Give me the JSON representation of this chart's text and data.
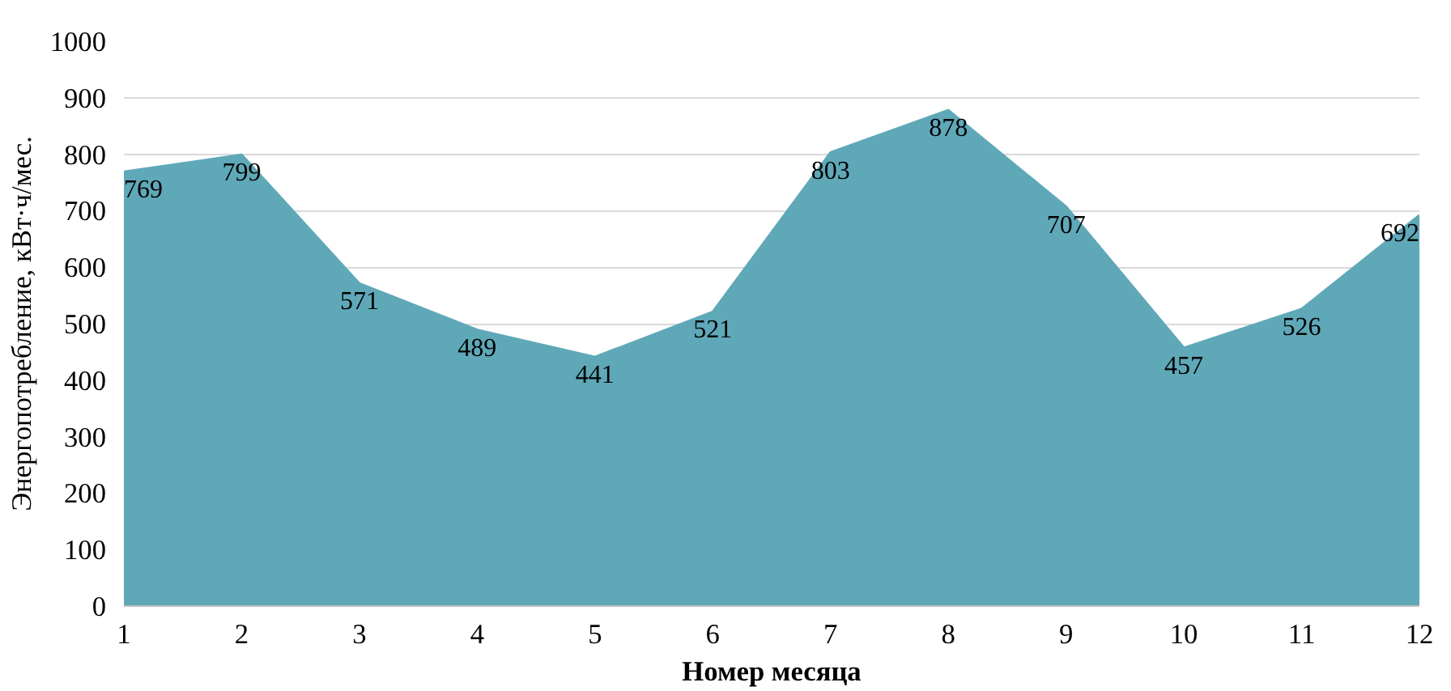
{
  "chart_data": {
    "type": "area",
    "xlabel": "Номер месяца",
    "ylabel": "Энергопотребление, кВт·ч/мес.",
    "x": [
      1,
      2,
      3,
      4,
      5,
      6,
      7,
      8,
      9,
      10,
      11,
      12
    ],
    "values": [
      769,
      799,
      571,
      489,
      441,
      521,
      803,
      878,
      707,
      457,
      526,
      692
    ],
    "color": "#5fa8b8",
    "xlim": [
      1,
      12
    ],
    "xticks": [
      1,
      2,
      3,
      4,
      5,
      6,
      7,
      8,
      9,
      10,
      11,
      12
    ],
    "ylim": [
      0,
      1000
    ],
    "yticks": [
      0,
      100,
      200,
      300,
      400,
      500,
      600,
      700,
      800,
      900,
      1000
    ],
    "grid": "y",
    "data_labels": true
  }
}
